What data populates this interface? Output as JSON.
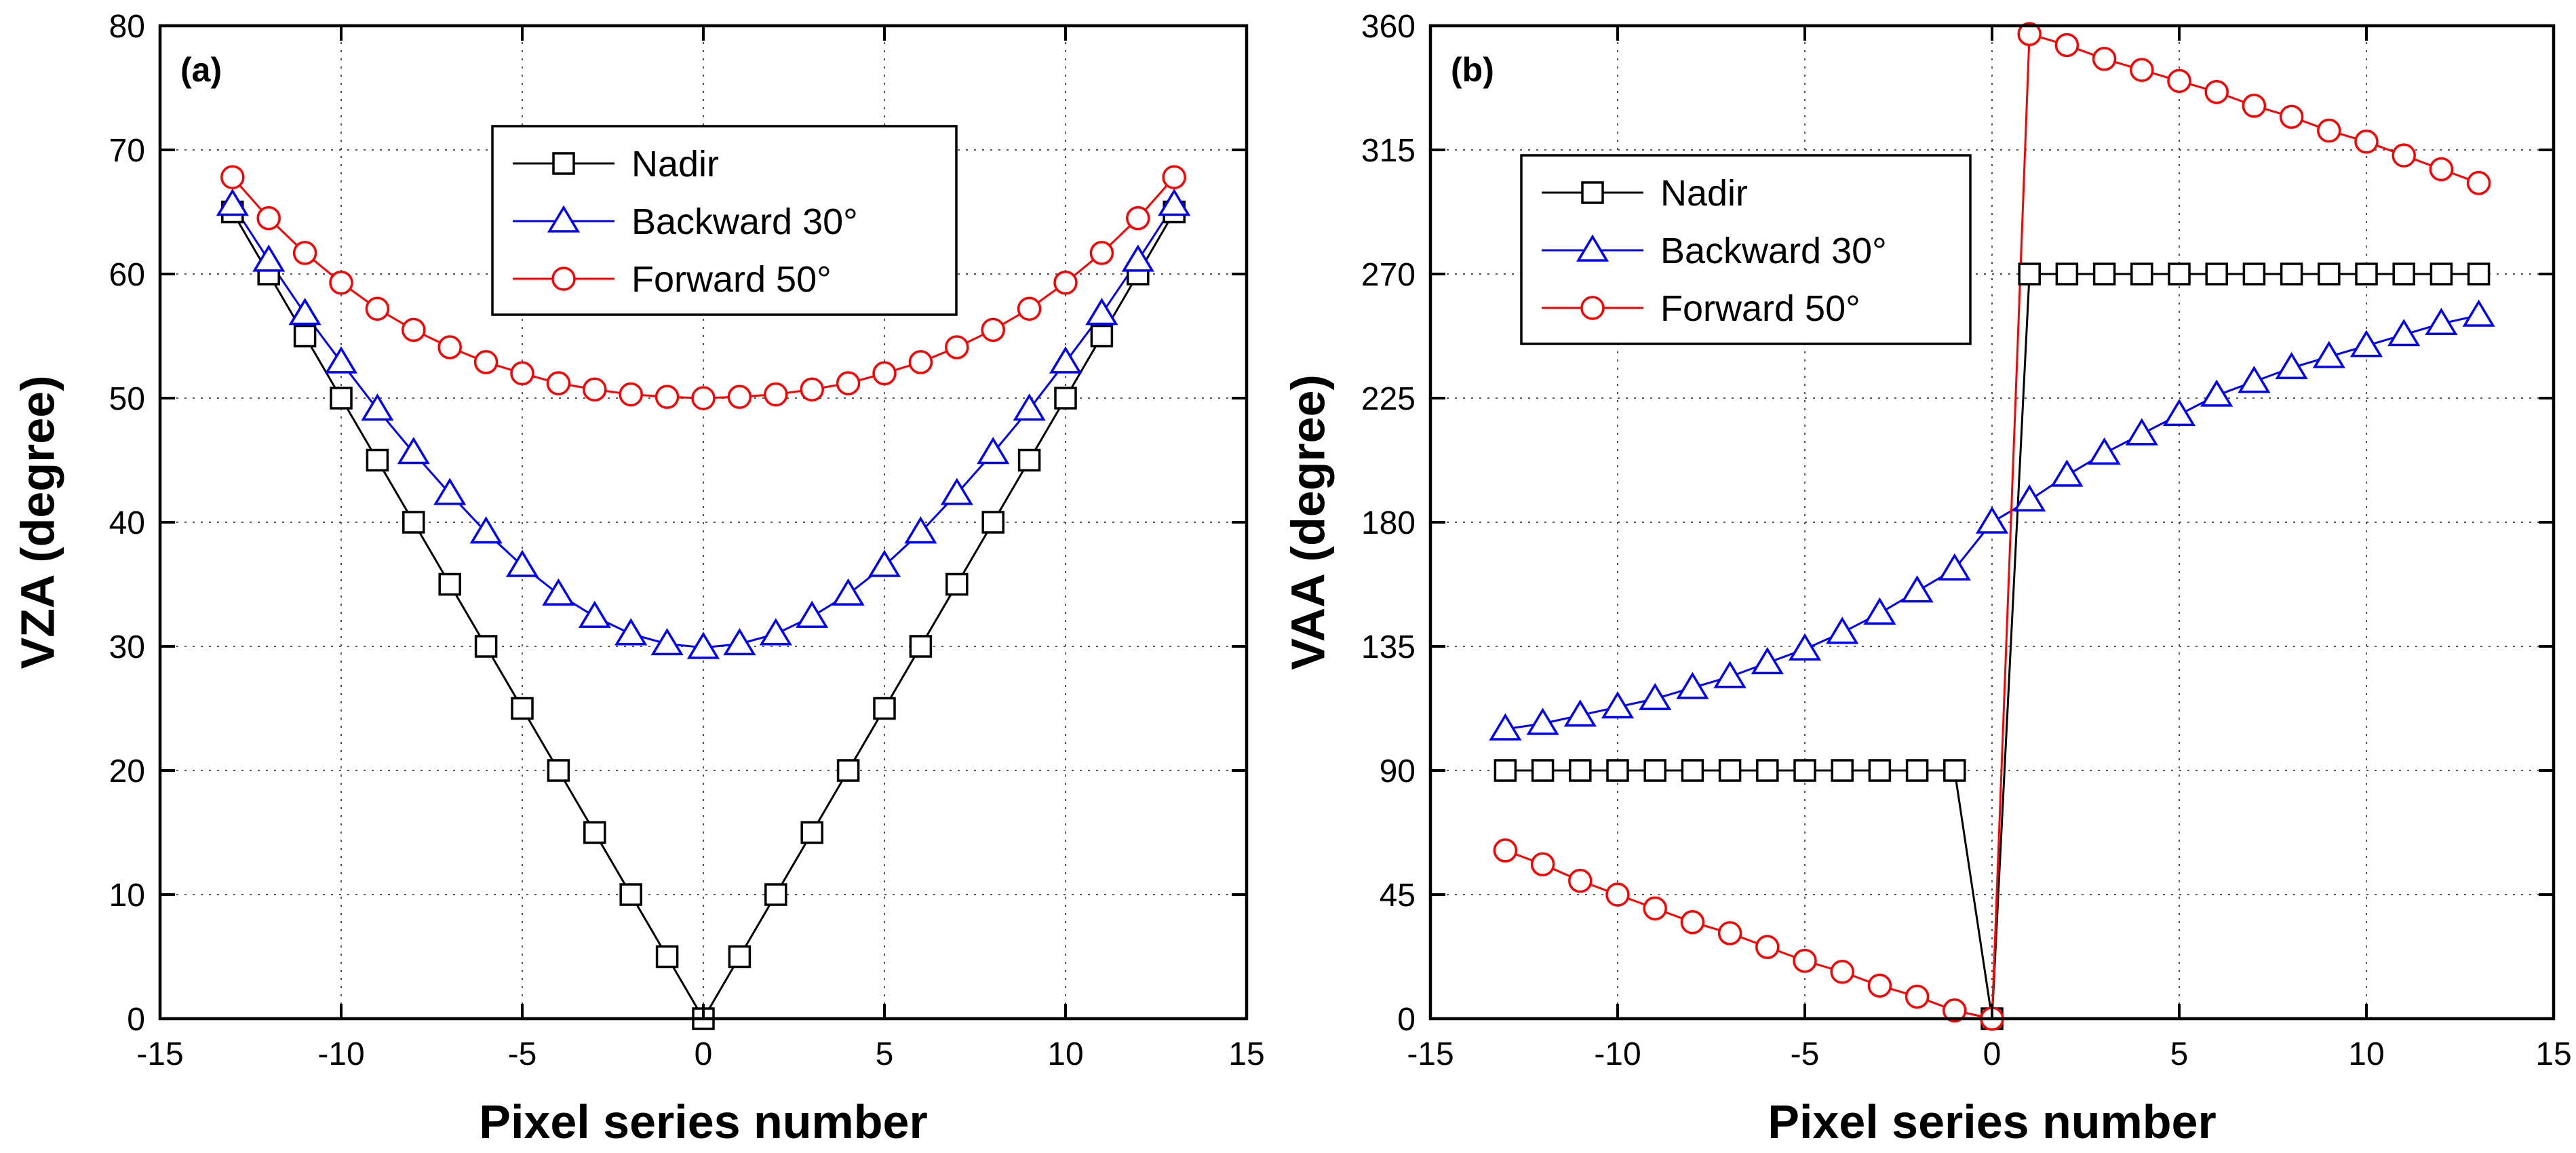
{
  "chart_data": [
    {
      "type": "line",
      "panel_label": "(a)",
      "xlabel": "Pixel series number",
      "ylabel": "VZA (degree)",
      "xlim": [
        -15,
        15
      ],
      "ylim": [
        0,
        80
      ],
      "xticks": [
        -15,
        -10,
        -5,
        0,
        5,
        10,
        15
      ],
      "yticks": [
        0,
        10,
        20,
        30,
        40,
        50,
        60,
        70,
        80
      ],
      "grid": true,
      "legend_position": "top-center",
      "x": [
        -13,
        -12,
        -11,
        -10,
        -9,
        -8,
        -7,
        -6,
        -5,
        -4,
        -3,
        -2,
        -1,
        0,
        1,
        2,
        3,
        4,
        5,
        6,
        7,
        8,
        9,
        10,
        11,
        12,
        13
      ],
      "series": [
        {
          "name": "Nadir",
          "marker": "square",
          "color": "#000000",
          "values": [
            65,
            60,
            55,
            50,
            45,
            40,
            35,
            30,
            25,
            20,
            15,
            10,
            5,
            0,
            5,
            10,
            15,
            20,
            25,
            30,
            35,
            40,
            45,
            50,
            55,
            60,
            65
          ]
        },
        {
          "name": "Backward 30°",
          "marker": "triangle",
          "color": "#0000ff",
          "values": [
            65.6,
            61.1,
            56.8,
            52.9,
            49.1,
            45.6,
            42.3,
            39.2,
            36.5,
            34.2,
            32.4,
            31.0,
            30.2,
            29.9,
            30.2,
            31.0,
            32.4,
            34.2,
            36.5,
            39.2,
            42.3,
            45.6,
            49.1,
            52.9,
            56.8,
            61.1,
            65.6
          ]
        },
        {
          "name": "Forward 50°",
          "marker": "circle",
          "color": "#ff0000",
          "values": [
            67.8,
            64.5,
            61.7,
            59.3,
            57.2,
            55.5,
            54.1,
            52.9,
            52.0,
            51.2,
            50.7,
            50.3,
            50.1,
            50.0,
            50.1,
            50.3,
            50.7,
            51.2,
            52.0,
            52.9,
            54.1,
            55.5,
            57.2,
            59.3,
            61.7,
            64.5,
            67.8
          ]
        }
      ]
    },
    {
      "type": "line",
      "panel_label": "(b)",
      "xlabel": "Pixel series number",
      "ylabel": "VAA (degree)",
      "xlim": [
        -15,
        15
      ],
      "ylim": [
        0,
        360
      ],
      "xticks": [
        -15,
        -10,
        -5,
        0,
        5,
        10,
        15
      ],
      "yticks": [
        0,
        45,
        90,
        135,
        180,
        225,
        270,
        315,
        360
      ],
      "grid": true,
      "legend_position": "top-left",
      "x": [
        -13,
        -12,
        -11,
        -10,
        -9,
        -8,
        -7,
        -6,
        -5,
        -4,
        -3,
        -2,
        -1,
        0,
        1,
        2,
        3,
        4,
        5,
        6,
        7,
        8,
        9,
        10,
        11,
        12,
        13
      ],
      "series": [
        {
          "name": "Nadir",
          "marker": "square",
          "color": "#000000",
          "values": [
            90,
            90,
            90,
            90,
            90,
            90,
            90,
            90,
            90,
            90,
            90,
            90,
            90,
            0,
            270,
            270,
            270,
            270,
            270,
            270,
            270,
            270,
            270,
            270,
            270,
            270,
            270
          ]
        },
        {
          "name": "Backward 30°",
          "marker": "triangle",
          "color": "#0000ff",
          "values": [
            105,
            107,
            110,
            113,
            116,
            120,
            124,
            129,
            134,
            140,
            147,
            155,
            163,
            180,
            188,
            197,
            205,
            212,
            219,
            226,
            231,
            236,
            240,
            244,
            248,
            252,
            255
          ]
        },
        {
          "name": "Forward 50°",
          "marker": "circle",
          "color": "#ff0000",
          "values": [
            61,
            56,
            50,
            45,
            40,
            35,
            31,
            26,
            21,
            17,
            12,
            8,
            3,
            0,
            357,
            353,
            348,
            344,
            340,
            336,
            331,
            327,
            322,
            318,
            313,
            308,
            303
          ]
        }
      ]
    }
  ]
}
